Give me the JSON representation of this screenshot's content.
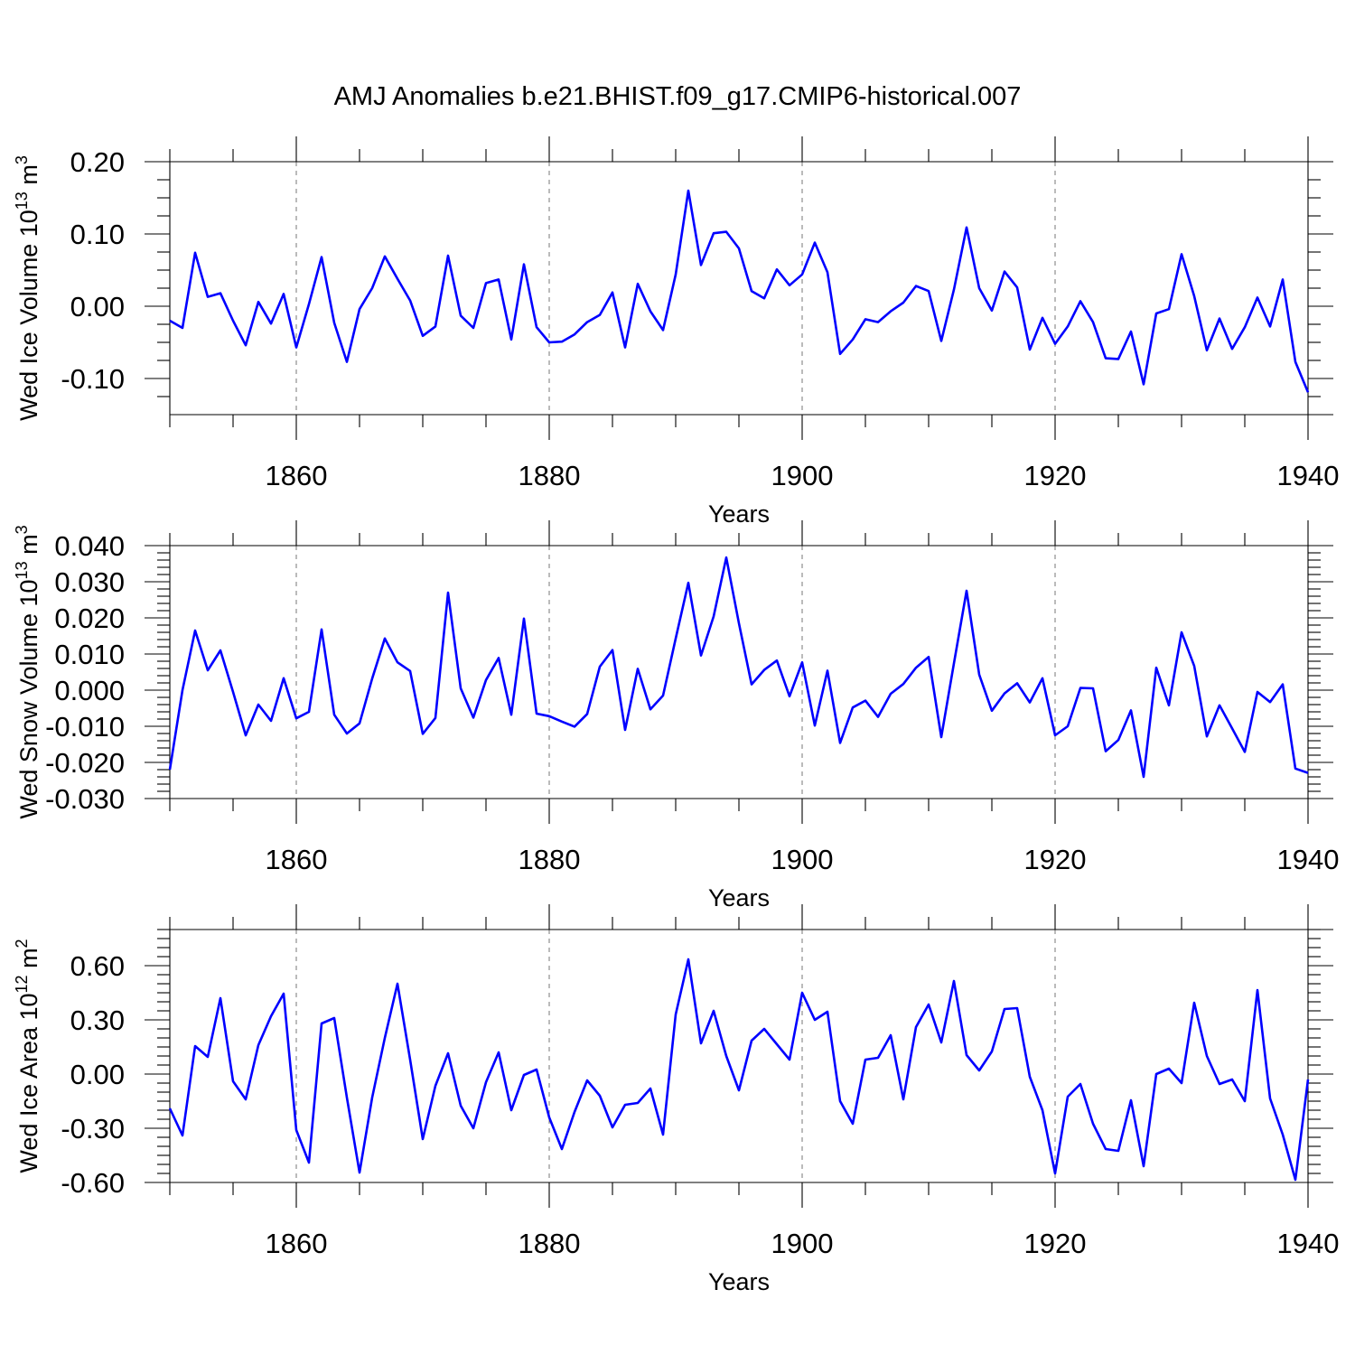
{
  "figure": {
    "title": "AMJ Anomalies b.e21.BHIST.f09_g17.CMIP6-historical.007",
    "line_color": "#0000ff"
  },
  "chart_data": [
    {
      "type": "line",
      "ylabel": "Wed Ice Volume 10",
      "ylabel_exp": "13",
      "ylabel_unit": " m",
      "ylabel_unit_exp": "3",
      "xlabel": "Years",
      "xlim": [
        1850,
        1940
      ],
      "ylim": [
        -0.15,
        0.2
      ],
      "yticks": [
        0.2,
        0.1,
        0.0,
        -0.1
      ],
      "ytick_labels": [
        "0.20",
        "0.10",
        "0.00",
        "-0.10"
      ],
      "yminor": [
        0.175,
        0.15,
        0.125,
        0.075,
        0.05,
        0.025,
        -0.025,
        -0.05,
        -0.075,
        -0.125
      ],
      "xticks": [
        1860,
        1880,
        1900,
        1920,
        1940
      ],
      "xtick_labels": [
        "1860",
        "1880",
        "1900",
        "1920",
        "1940"
      ],
      "x_start": 1850,
      "values": [
        -0.02,
        -0.03,
        0.074,
        0.013,
        0.018,
        -0.02,
        -0.054,
        0.006,
        -0.024,
        0.017,
        -0.057,
        0.003,
        0.068,
        -0.023,
        -0.077,
        -0.004,
        0.025,
        0.069,
        0.038,
        0.008,
        -0.041,
        -0.028,
        0.07,
        -0.013,
        -0.03,
        0.032,
        0.037,
        -0.046,
        0.058,
        -0.029,
        -0.05,
        -0.049,
        -0.039,
        -0.022,
        -0.012,
        0.019,
        -0.057,
        0.031,
        -0.007,
        -0.033,
        0.044,
        0.16,
        0.057,
        0.101,
        0.103,
        0.08,
        0.021,
        0.011,
        0.051,
        0.029,
        0.044,
        0.088,
        0.047,
        -0.066,
        -0.046,
        -0.018,
        -0.022,
        -0.007,
        0.005,
        0.028,
        0.021,
        -0.048,
        0.023,
        0.109,
        0.025,
        -0.006,
        0.048,
        0.026,
        -0.06,
        -0.016,
        -0.052,
        -0.028,
        0.007,
        -0.022,
        -0.072,
        -0.073,
        -0.035,
        -0.108,
        -0.01,
        -0.004,
        0.072,
        0.014,
        -0.061,
        -0.017,
        -0.059,
        -0.029,
        0.012,
        -0.028,
        0.037,
        -0.077,
        -0.119
      ]
    },
    {
      "type": "line",
      "ylabel": "Wed Snow Volume 10",
      "ylabel_exp": "13",
      "ylabel_unit": " m",
      "ylabel_unit_exp": "3",
      "xlabel": "Years",
      "xlim": [
        1850,
        1940
      ],
      "ylim": [
        -0.03,
        0.04
      ],
      "yticks": [
        0.04,
        0.03,
        0.02,
        0.01,
        0.0,
        -0.01,
        -0.02,
        -0.03
      ],
      "ytick_labels": [
        "0.040",
        "0.030",
        "0.020",
        "0.010",
        "0.000",
        "-0.010",
        "-0.020",
        "-0.030"
      ],
      "yminor": [
        0.038,
        0.036,
        0.034,
        0.032,
        0.028,
        0.026,
        0.024,
        0.022,
        0.018,
        0.016,
        0.014,
        0.012,
        0.008,
        0.006,
        0.004,
        0.002,
        -0.002,
        -0.004,
        -0.006,
        -0.008,
        -0.012,
        -0.014,
        -0.016,
        -0.018,
        -0.022,
        -0.024,
        -0.026,
        -0.028
      ],
      "xticks": [
        1860,
        1880,
        1900,
        1920,
        1940
      ],
      "xtick_labels": [
        "1860",
        "1880",
        "1900",
        "1920",
        "1940"
      ],
      "x_start": 1850,
      "values": [
        -0.022,
        0.0,
        0.0165,
        0.0055,
        0.011,
        -0.0005,
        -0.0125,
        -0.004,
        -0.0085,
        0.0033,
        -0.0078,
        -0.006,
        0.0168,
        -0.0068,
        -0.012,
        -0.0092,
        0.0032,
        0.0143,
        0.0077,
        0.0053,
        -0.0121,
        -0.0077,
        0.027,
        0.0005,
        -0.0076,
        0.0028,
        0.0089,
        -0.0068,
        0.0198,
        -0.0065,
        -0.0072,
        -0.0087,
        -0.0101,
        -0.0066,
        0.0065,
        0.0111,
        -0.011,
        0.0059,
        -0.0053,
        -0.0015,
        0.0143,
        0.0297,
        0.0096,
        0.0204,
        0.0367,
        0.0185,
        0.0016,
        0.0056,
        0.0082,
        -0.0017,
        0.0077,
        -0.0098,
        0.0054,
        -0.0146,
        -0.0048,
        -0.0029,
        -0.0074,
        -0.001,
        0.0017,
        0.0062,
        0.0092,
        -0.013,
        0.0074,
        0.0275,
        0.0043,
        -0.0057,
        -0.0009,
        0.0019,
        -0.0034,
        0.0033,
        -0.0125,
        -0.01,
        0.0006,
        0.0005,
        -0.0169,
        -0.0138,
        -0.0056,
        -0.024,
        0.0062,
        -0.0042,
        0.016,
        0.0067,
        -0.0128,
        -0.0042,
        -0.0106,
        -0.0171,
        -0.0005,
        -0.0033,
        0.0016,
        -0.0217,
        -0.0229
      ]
    },
    {
      "type": "line",
      "ylabel": "Wed Ice Area 10",
      "ylabel_exp": "12",
      "ylabel_unit": " m",
      "ylabel_unit_exp": "2",
      "xlabel": "Years",
      "xlim": [
        1850,
        1940
      ],
      "ylim": [
        -0.6,
        0.8
      ],
      "yticks": [
        0.6,
        0.3,
        0.0,
        -0.3,
        -0.6
      ],
      "ytick_labels": [
        "0.60",
        "0.30",
        "0.00",
        "-0.30",
        "-0.60"
      ],
      "yminor": [
        0.8,
        0.75,
        0.7,
        0.65,
        0.55,
        0.5,
        0.45,
        0.4,
        0.35,
        0.25,
        0.2,
        0.15,
        0.1,
        0.05,
        -0.05,
        -0.1,
        -0.15,
        -0.2,
        -0.25,
        -0.35,
        -0.4,
        -0.45,
        -0.5,
        -0.55
      ],
      "xticks": [
        1860,
        1880,
        1900,
        1920,
        1940
      ],
      "xtick_labels": [
        "1860",
        "1880",
        "1900",
        "1920",
        "1940"
      ],
      "x_start": 1850,
      "values": [
        -0.19,
        -0.34,
        0.155,
        0.095,
        0.42,
        -0.04,
        -0.14,
        0.16,
        0.32,
        0.445,
        -0.31,
        -0.49,
        0.28,
        0.31,
        -0.13,
        -0.545,
        -0.13,
        0.2,
        0.5,
        0.08,
        -0.36,
        -0.065,
        0.115,
        -0.175,
        -0.3,
        -0.045,
        0.12,
        -0.2,
        -0.005,
        0.025,
        -0.24,
        -0.415,
        -0.21,
        -0.035,
        -0.12,
        -0.295,
        -0.17,
        -0.16,
        -0.08,
        -0.335,
        0.33,
        0.635,
        0.17,
        0.35,
        0.1,
        -0.09,
        0.185,
        0.25,
        0.165,
        0.08,
        0.45,
        0.3,
        0.345,
        -0.15,
        -0.275,
        0.08,
        0.09,
        0.215,
        -0.14,
        0.26,
        0.385,
        0.175,
        0.515,
        0.105,
        0.02,
        0.125,
        0.36,
        0.365,
        -0.015,
        -0.2,
        -0.55,
        -0.125,
        -0.055,
        -0.275,
        -0.415,
        -0.425,
        -0.145,
        -0.51,
        0.0,
        0.03,
        -0.05,
        0.395,
        0.1,
        -0.055,
        -0.03,
        -0.15,
        0.465,
        -0.135,
        -0.335,
        -0.585,
        -0.03
      ]
    }
  ]
}
